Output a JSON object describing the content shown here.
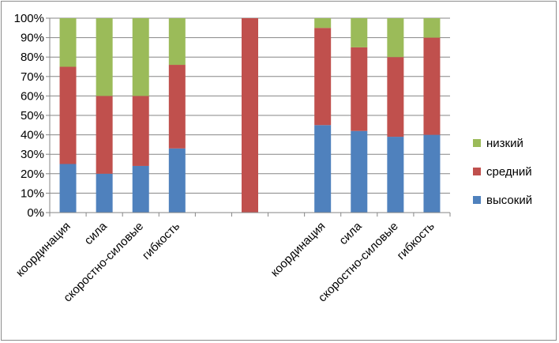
{
  "chart_data": {
    "type": "bar",
    "stacked": true,
    "percent": true,
    "categories": [
      "координация",
      "сила",
      "скоростно-силовые",
      "гибкость",
      "",
      "",
      "",
      "координация",
      "сила",
      "скоростно-силовые",
      "гибкость"
    ],
    "series": [
      {
        "name": "высокий",
        "color": "#4f81bd",
        "values": [
          25,
          20,
          24,
          33,
          0,
          0,
          0,
          45,
          42,
          39,
          40
        ]
      },
      {
        "name": "средний",
        "color": "#c0504d",
        "values": [
          50,
          40,
          36,
          43,
          0,
          100,
          0,
          50,
          43,
          41,
          50
        ]
      },
      {
        "name": "низкий",
        "color": "#9bbb59",
        "values": [
          25,
          40,
          40,
          24,
          0,
          0,
          0,
          5,
          15,
          20,
          10
        ]
      }
    ],
    "y_ticks": [
      "0%",
      "10%",
      "20%",
      "30%",
      "40%",
      "50%",
      "60%",
      "70%",
      "80%",
      "90%",
      "100%"
    ],
    "ylim": [
      0,
      100
    ],
    "grid": true,
    "legend": {
      "position": "right",
      "order": [
        "низкий",
        "средний",
        "высокий"
      ]
    }
  }
}
